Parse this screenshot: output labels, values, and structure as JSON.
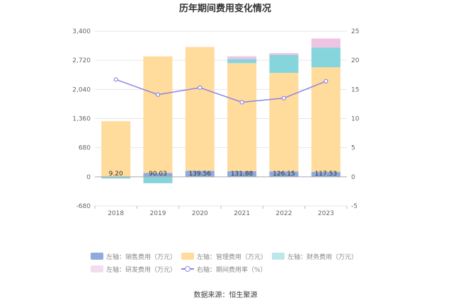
{
  "chart_data": {
    "type": "bar",
    "title": "历年期间费用变化情况",
    "categories": [
      "2018",
      "2019",
      "2020",
      "2021",
      "2022",
      "2023"
    ],
    "stacked": true,
    "series": [
      {
        "name": "左轴：销售费用（万元）",
        "axis": "left",
        "color": "#8faadc",
        "values": [
          9.2,
          90.03,
          139.56,
          131.88,
          126.15,
          117.53
        ]
      },
      {
        "name": "左轴：管理费用（万元）",
        "axis": "left",
        "color": "#ffdb9c",
        "values": [
          1290,
          2720,
          2890,
          2520,
          2300,
          2440
        ]
      },
      {
        "name": "左轴：财务费用（万元）",
        "axis": "left",
        "color": "#86d5dc",
        "values": [
          -40,
          -150,
          0,
          100,
          420,
          460
        ]
      },
      {
        "name": "左轴：研发费用（万元）",
        "axis": "left",
        "color": "#eec4e2",
        "values": [
          0,
          0,
          0,
          60,
          40,
          210
        ]
      },
      {
        "name": "右轴：期间费用率（%）",
        "axis": "right",
        "type": "line",
        "color": "#8d85e6",
        "values": [
          16.7,
          14.1,
          15.3,
          12.8,
          13.5,
          16.4
        ]
      }
    ],
    "data_labels": [
      "9.20",
      "90.03",
      "139.56",
      "131.88",
      "126.15",
      "117.53"
    ],
    "y_left": {
      "ylim": [
        -680,
        3400
      ],
      "ticks": [
        "-680",
        "0",
        "680",
        "1,360",
        "2,040",
        "2,720",
        "3,400"
      ]
    },
    "y_right": {
      "ylim": [
        -5,
        25
      ],
      "ticks": [
        "-5",
        "0",
        "5",
        "10",
        "15",
        "20",
        "25"
      ]
    },
    "grid": true,
    "legend_position": "bottom"
  },
  "source_text": "数据来源：恒生聚源"
}
